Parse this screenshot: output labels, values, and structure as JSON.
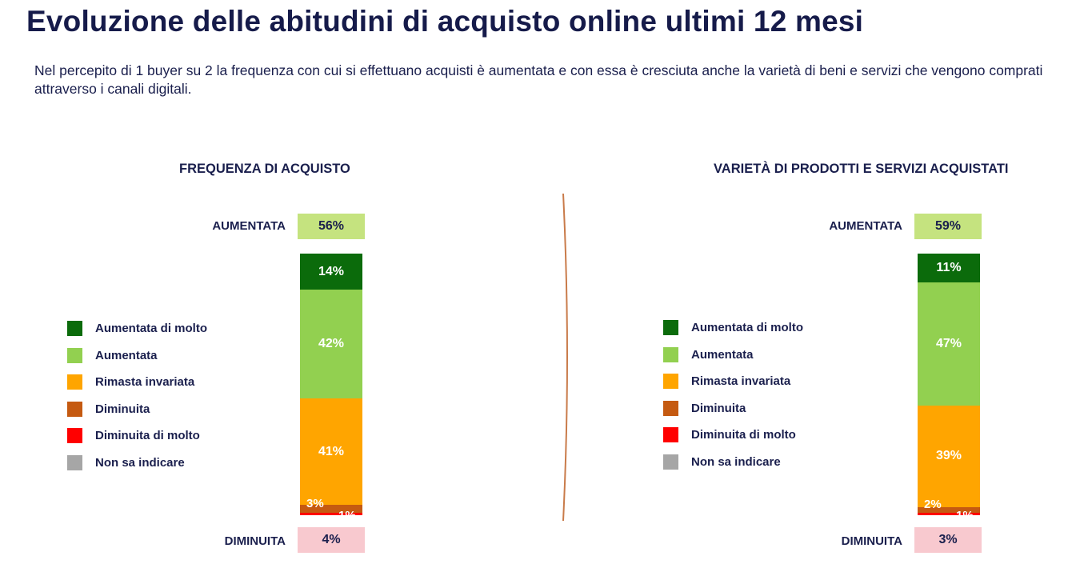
{
  "page": {
    "title": "Evoluzione delle abitudini di acquisto online ultimi 12 mesi",
    "subtitle": "Nel percepito di 1 buyer su 2 la frequenza con cui si effettuano acquisti è aumentata e con essa è cresciuta anche la varietà di beni e servizi che vengono comprati attraverso i canali digitali."
  },
  "legend": [
    {
      "label": "Aumentata di molto",
      "color": "#0b6b0b"
    },
    {
      "label": "Aumentata",
      "color": "#92d050"
    },
    {
      "label": "Rimasta invariata",
      "color": "#ffa500"
    },
    {
      "label": "Diminuita",
      "color": "#c55a11"
    },
    {
      "label": "Diminuita di molto",
      "color": "#ff0000"
    },
    {
      "label": "Non sa indicare",
      "color": "#a6a6a6"
    }
  ],
  "chart_data": [
    {
      "type": "bar",
      "stacked": true,
      "title": "FREQUENZA DI ACQUISTO",
      "summary": {
        "up_label": "AUMENTATA",
        "up_value": "56%",
        "down_label": "DIMINUITA",
        "down_value": "4%"
      },
      "series": [
        {
          "name": "Aumentata di molto",
          "value": 14,
          "label": "14%",
          "color": "#0b6b0b"
        },
        {
          "name": "Aumentata",
          "value": 42,
          "label": "42%",
          "color": "#92d050"
        },
        {
          "name": "Rimasta invariata",
          "value": 41,
          "label": "41%",
          "color": "#ffa500"
        },
        {
          "name": "Diminuita",
          "value": 3,
          "label": "3%",
          "color": "#c55a11"
        },
        {
          "name": "Diminuita di molto",
          "value": 1,
          "label": "1%",
          "color": "#ff0000"
        },
        {
          "name": "Non sa indicare",
          "value": 0,
          "label": "",
          "color": "#a6a6a6"
        }
      ]
    },
    {
      "type": "bar",
      "stacked": true,
      "title": "VARIETÀ DI PRODOTTI E SERVIZI ACQUISTATI",
      "summary": {
        "up_label": "AUMENTATA",
        "up_value": "59%",
        "down_label": "DIMINUITA",
        "down_value": "3%"
      },
      "series": [
        {
          "name": "Aumentata di molto",
          "value": 11,
          "label": "11%",
          "color": "#0b6b0b"
        },
        {
          "name": "Aumentata",
          "value": 47,
          "label": "47%",
          "color": "#92d050"
        },
        {
          "name": "Rimasta invariata",
          "value": 39,
          "label": "39%",
          "color": "#ffa500"
        },
        {
          "name": "Diminuita",
          "value": 2,
          "label": "2%",
          "color": "#c55a11"
        },
        {
          "name": "Diminuita di molto",
          "value": 1,
          "label": "1%",
          "color": "#ff0000"
        },
        {
          "name": "Non sa indicare",
          "value": 0,
          "label": "",
          "color": "#a6a6a6"
        }
      ]
    }
  ]
}
